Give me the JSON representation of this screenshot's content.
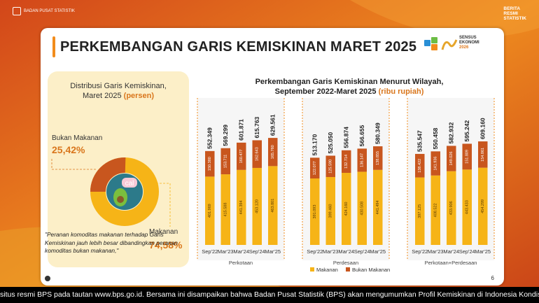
{
  "header": {
    "org_name": "BADAN PUSAT STATISTIK",
    "badge_lines": [
      "BERITA",
      "RESMI",
      "STATISTIK"
    ]
  },
  "slide": {
    "title": "PERKEMBANGAN GARIS KEMISKINAN MARET 2025",
    "sensus_lines": [
      "SENSUS",
      "EKONOMI",
      "2026"
    ],
    "page_number": "6"
  },
  "left_panel": {
    "title_line1": "Distribusi Garis Kemiskinan,",
    "title_line2": "Maret 2025",
    "title_unit": "(persen)",
    "bukan_makanan_label": "Bukan Makanan",
    "bukan_makanan_value": "25,42%",
    "makanan_label": "Makanan",
    "makanan_value": "74,58%",
    "icon_text": "cal",
    "note": "\"Peranan komoditas makanan terhadap Garis Kemiskinan jauh lebih besar dibandingkan peranan komoditas bukan makanan,\""
  },
  "colors": {
    "makanan": "#f6b417",
    "bukan_makanan": "#c8561e",
    "accent": "#d9761c",
    "panel": "#fcefc8"
  },
  "chart_data": {
    "type": "bar",
    "stacked": true,
    "title_line1": "Perkembangan Garis Kemiskinan Menurut Wilayah,",
    "title_line2": "September 2022-Maret 2025",
    "title_unit": "(ribu rupiah)",
    "legend": [
      "Makanan",
      "Bukan Makanan"
    ],
    "legend_position": "bottom",
    "ylim": [
      0,
      700000
    ],
    "groups": [
      {
        "name": "Perkotaan",
        "categories": [
          "Sep'22",
          "Mar'23",
          "Mar'24",
          "Sep'24",
          "Mar'25"
        ],
        "makanan": [
          "401.969",
          "415.588",
          "441.394",
          "453.120",
          "463.801"
        ],
        "bukan_makanan": [
          "150.380",
          "153.711",
          "160.477",
          "162.643",
          "165.760"
        ],
        "totals": [
          "552.349",
          "569.299",
          "601.871",
          "615.763",
          "629.561"
        ]
      },
      {
        "name": "Perdesaan",
        "categories": [
          "Sep'22",
          "Mar'23",
          "Mar'24",
          "Sep'24",
          "Mar'25"
        ],
        "makanan": [
          "391.093",
          "399.460",
          "424.160",
          "430.508",
          "441.494"
        ],
        "bukan_makanan": [
          "122.077",
          "125.590",
          "132.714",
          "136.147",
          "138.855"
        ],
        "totals": [
          "513.170",
          "525.050",
          "556.874",
          "566.655",
          "580.349"
        ]
      },
      {
        "name": "Perkotaan+Perdesaan",
        "categories": [
          "Sep'22",
          "Mar'23",
          "Mar'24",
          "Sep'24",
          "Mar'25"
        ],
        "makanan": [
          "397.125",
          "408.522",
          "433.906",
          "443.433",
          "454.299"
        ],
        "bukan_makanan": [
          "138.422",
          "141.936",
          "149.026",
          "151.809",
          "154.861"
        ],
        "totals": [
          "535.547",
          "550.458",
          "582.932",
          "595.242",
          "609.160"
        ]
      }
    ]
  },
  "ticker": {
    "text": "situs resmi BPS pada tautan www.bps.go.id. Bersama ini disampaikan bahwa Badan Pusat Statistik (BPS) akan mengumumkan Profil Kemiskinan di Indonesia Kondisi"
  }
}
